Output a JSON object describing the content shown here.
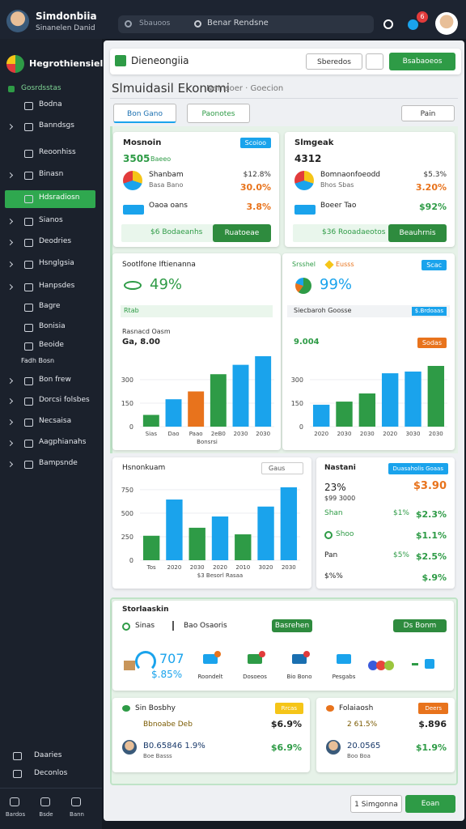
{
  "header": {
    "user_name": "Simdonbiia",
    "user_subtitle": "Sinanelen Danid",
    "search_left": "Sbauoos",
    "search_right": "Benar Rendsne",
    "notification_count": "6"
  },
  "sidebar": {
    "title": "Hegrothiensiel",
    "section": "Gosrdsstas",
    "items": [
      "Bodna",
      "Banndsgs",
      "Reoonhiss",
      "Binasn",
      "Hdsradiosn",
      "Sianos",
      "Deodries",
      "Hsnglgsia",
      "Hanpsdes",
      "Bagre",
      "Bonisia",
      "Beoide",
      "Fadh Bosn",
      "Bon frew",
      "Dorcsi folsbes",
      "Necsaisa",
      "Aagphianahs",
      "Bampsnde"
    ],
    "bottom_items": [
      "Daaries",
      "Deconlos"
    ],
    "footer_items": [
      "Bardos",
      "Bsde",
      "Bann"
    ]
  },
  "toolbar": {
    "logo_text": "Dieneongiia",
    "filter_button": "Sberedos",
    "primary_button": "Bsabaoeos"
  },
  "page": {
    "title": "Slmuidasil Ekonomi",
    "subtitle": "Nemsoer · Goecion",
    "tabs": [
      "Bon Gano",
      "Paonotes"
    ],
    "dropdown": "Pain"
  },
  "summary_cards": [
    {
      "title": "Mosnoin",
      "badge": "Scoioo",
      "value": "3505",
      "value_note": "Baeeo",
      "rows": [
        {
          "label": "Shanbam",
          "sublabel": "Basa Bano",
          "values": [
            "$12.8%",
            "30.0%"
          ]
        },
        {
          "label": "Oaoa oans",
          "values": [
            "3.8%"
          ]
        }
      ],
      "footer_text": "$6 Bodaeanhs",
      "button": "Ruatoeae"
    },
    {
      "title": "Slmgeak",
      "badge": "",
      "value": "4312",
      "value_note": "",
      "rows": [
        {
          "label": "Bomnaonfoeodd",
          "sublabel": "Bhos Sbas",
          "values": [
            "$5.3%",
            "3.20%"
          ]
        },
        {
          "label": "Boeer Tao",
          "values": [
            "$92%"
          ]
        }
      ],
      "footer_text": "$36 Rooadaeotos",
      "button": "Beauhrnis"
    }
  ],
  "charts": [
    {
      "title": "Sootlfone Iftienanna",
      "headline": "49%",
      "dropdown": "Rtab",
      "caption": "Rasnacd Oasm",
      "value_label": "Ga, 8.00",
      "values": [
        75,
        175,
        225,
        335,
        395,
        450
      ],
      "colors": [
        "#2e9b46",
        "#1aa3ec",
        "#e8731c",
        "#2e9b46",
        "#1aa3ec",
        "#1aa3ec"
      ],
      "categories": [
        "Sias",
        "Dao",
        "Paao",
        "2eB0",
        "2030",
        "2030"
      ],
      "ylim": [
        0,
        450
      ],
      "yticks": [
        0,
        150,
        300
      ],
      "axis_note": "Bonsrsi"
    },
    {
      "title": "Srsshel",
      "tag": "Eusss",
      "badge": "Scac",
      "headline": "99%",
      "caption": "Siecbaroh Goosse",
      "caption_badge": "$.Brdoaas",
      "value_label": "9.004",
      "value_badge": "Sodas",
      "values": [
        140,
        160,
        212,
        341,
        352,
        388
      ],
      "colors": [
        "#1aa3ec",
        "#2e9b46",
        "#2e9b46",
        "#1aa3ec",
        "#1aa3ec",
        "#2e9b46"
      ],
      "categories": [
        "2020",
        "2030",
        "2030",
        "2020",
        "3030",
        "2030"
      ],
      "ylim": [
        0,
        450
      ],
      "yticks": [
        0,
        150,
        300
      ]
    },
    {
      "title": "Hsnonkuam",
      "dropdown": "Gaus",
      "values": [
        260,
        645,
        345,
        465,
        275,
        570,
        775
      ],
      "colors": [
        "#2e9b46",
        "#1aa3ec",
        "#2e9b46",
        "#1aa3ec",
        "#2e9b46",
        "#1aa3ec",
        "#1aa3ec"
      ],
      "categories": [
        "Tos",
        "2020",
        "2030",
        "2020",
        "2010",
        "3020",
        "2030"
      ],
      "ylim": [
        0,
        800
      ],
      "yticks": [
        0,
        250,
        500,
        750
      ],
      "axis_note": "$3 Besorl Rasaa"
    }
  ],
  "side_card": {
    "title": "Nastani",
    "badge": "Duasaholis Goaas",
    "big": "23%",
    "big_value": "$3.90",
    "sub": "$99 3000",
    "rows": [
      {
        "label": "Shan",
        "values": [
          "$1%",
          "$2.3%"
        ]
      },
      {
        "label": "Shoo",
        "values": [
          "$1.1%"
        ]
      },
      {
        "label": "Pan",
        "values": [
          "$5%",
          "$2.5%"
        ]
      },
      {
        "label": "$%%",
        "values": [
          "$.9%"
        ]
      }
    ]
  },
  "strip": {
    "title": "Storlaaskin",
    "radio_1": "Sinas",
    "radio_2": "Bao Osaoris",
    "button_1": "Basrehen",
    "button_2": "Ds Bonm",
    "big": "707",
    "big_sub": "$.85%",
    "icons": [
      "Roondelt",
      "Dosoeos",
      "Bio Bono",
      "Pesgabs"
    ]
  },
  "bottom_cards": [
    {
      "title": "Sin Bosbhy",
      "badge": "Rrcas",
      "line1": "Bbnoabe Deb",
      "value1": "$6.9%",
      "line2": "B0.65846 1.9%",
      "value2": "$6.9%",
      "note": "Boe Basss"
    },
    {
      "title": "Folaiaosh",
      "badge": "Deers",
      "line1": "2 61.5%",
      "value1": "$.896",
      "line2": "20.0565",
      "value2": "$1.9%",
      "note": "Boo Boa"
    }
  ],
  "footer": {
    "secondary_button": "1 Simgonna",
    "primary_button": "Eoan"
  }
}
